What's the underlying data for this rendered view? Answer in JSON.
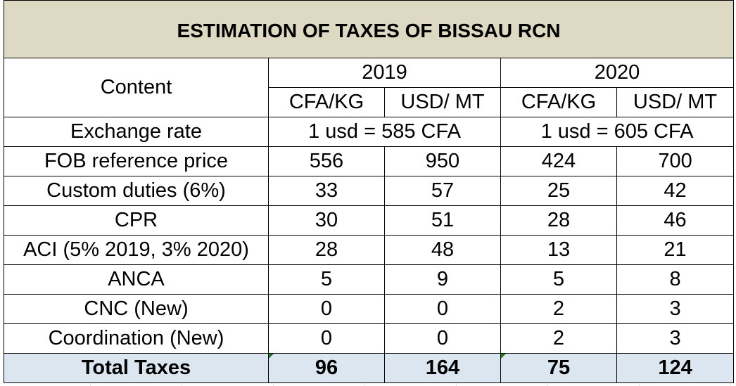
{
  "title": "ESTIMATION OF TAXES OF BISSAU RCN",
  "header": {
    "content_label": "Content",
    "years": [
      "2019",
      "2020"
    ],
    "units": [
      "CFA/KG",
      "USD/ MT",
      "CFA/KG",
      "USD/ MT"
    ]
  },
  "exchange_rate": {
    "label": "Exchange rate",
    "y2019": "1 usd = 585 CFA",
    "y2020": "1 usd = 605 CFA"
  },
  "rows": [
    {
      "label": "FOB reference price",
      "values": [
        "556",
        "950",
        "424",
        "700"
      ]
    },
    {
      "label": "Custom duties (6%)",
      "values": [
        "33",
        "57",
        "25",
        "42"
      ]
    },
    {
      "label": "CPR",
      "values": [
        "30",
        "51",
        "28",
        "46"
      ]
    },
    {
      "label": "ACI (5% 2019, 3% 2020)",
      "values": [
        "28",
        "48",
        "13",
        "21"
      ]
    },
    {
      "label": "ANCA",
      "values": [
        "5",
        "9",
        "5",
        "8"
      ]
    },
    {
      "label": "CNC (New)",
      "values": [
        "0",
        "0",
        "2",
        "3"
      ]
    },
    {
      "label": "Coordination (New)",
      "values": [
        "0",
        "0",
        "2",
        "3"
      ]
    }
  ],
  "total": {
    "label": "Total Taxes",
    "values": [
      "96",
      "164",
      "75",
      "124"
    ]
  },
  "colors": {
    "title_bg": "#ddd9c3",
    "total_bg": "#dce6f1",
    "border": "#000000"
  }
}
